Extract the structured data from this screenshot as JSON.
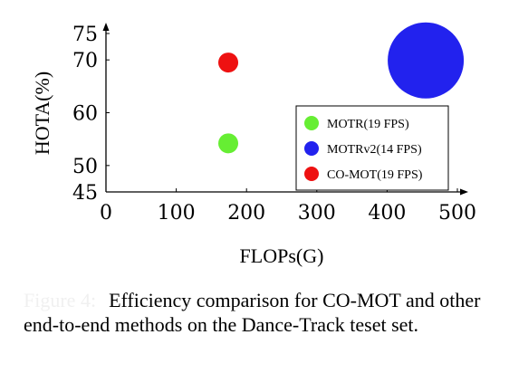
{
  "chart_data": {
    "type": "scatter",
    "xlabel": "FLOPs(G)",
    "ylabel": "HOTA(%)",
    "xlim": [
      0,
      500
    ],
    "ylim": [
      45,
      75
    ],
    "xticks": [
      0,
      100,
      200,
      300,
      400,
      500
    ],
    "yticks": [
      45,
      50,
      60,
      70,
      75
    ],
    "grid": false,
    "legend_position": "bottom-right",
    "series": [
      {
        "name": "MOTR(19 FPS)",
        "x": 174,
        "y": 54.2,
        "fps": 19,
        "color": "#66ee33"
      },
      {
        "name": "MOTRv2(14 FPS)",
        "x": 455,
        "y": 69.9,
        "fps": 14,
        "color": "#2222ee"
      },
      {
        "name": "CO-MOT(19 FPS)",
        "x": 174,
        "y": 69.5,
        "fps": 19,
        "color": "#ee1111"
      }
    ]
  },
  "caption": {
    "label": "Figure 4:",
    "text": "Efficiency comparison for CO-MOT and other end-to-end methods on the Dance-Track teset set."
  }
}
